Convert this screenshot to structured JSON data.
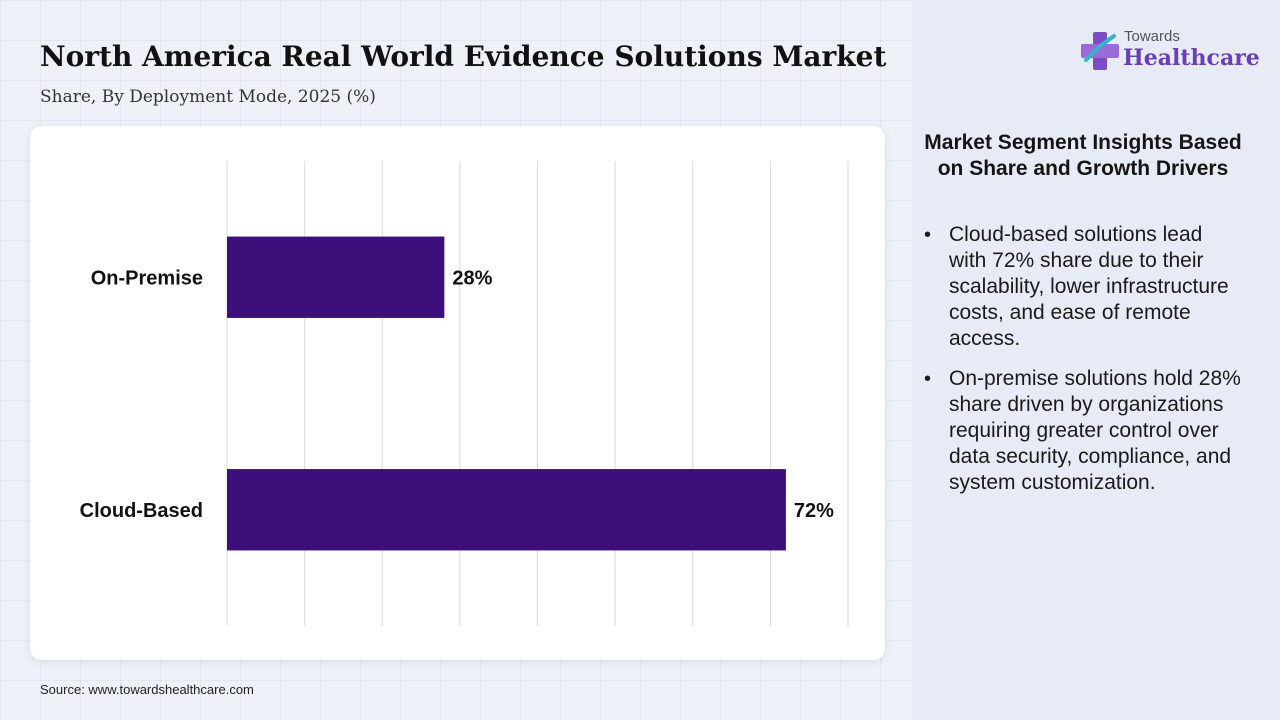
{
  "header": {
    "title": "North America Real World Evidence Solutions Market",
    "subtitle": "Share, By Deployment Mode, 2025 (%)"
  },
  "chart_data": {
    "type": "bar",
    "orientation": "horizontal",
    "categories": [
      "On-Premise",
      "Cloud-Based"
    ],
    "values": [
      28,
      72
    ],
    "value_labels": [
      "28%",
      "72%"
    ],
    "xlim": [
      0,
      80
    ],
    "grid": true,
    "bar_color": "#3d0f7a"
  },
  "logo": {
    "line1": "Towards",
    "line2": "Healthcare",
    "brand_color": "#6a3fb5"
  },
  "insights": {
    "title": "Market Segment Insights Based on Share and Growth Drivers",
    "items": [
      "Cloud-based solutions lead with 72% share due to their scalability, lower infrastructure costs, and ease of remote access.",
      "On-premise solutions hold 28% share driven by organizations requiring greater control over data security, compliance, and system customization."
    ]
  },
  "footer": {
    "source": "Source: www.towardshealthcare.com"
  }
}
